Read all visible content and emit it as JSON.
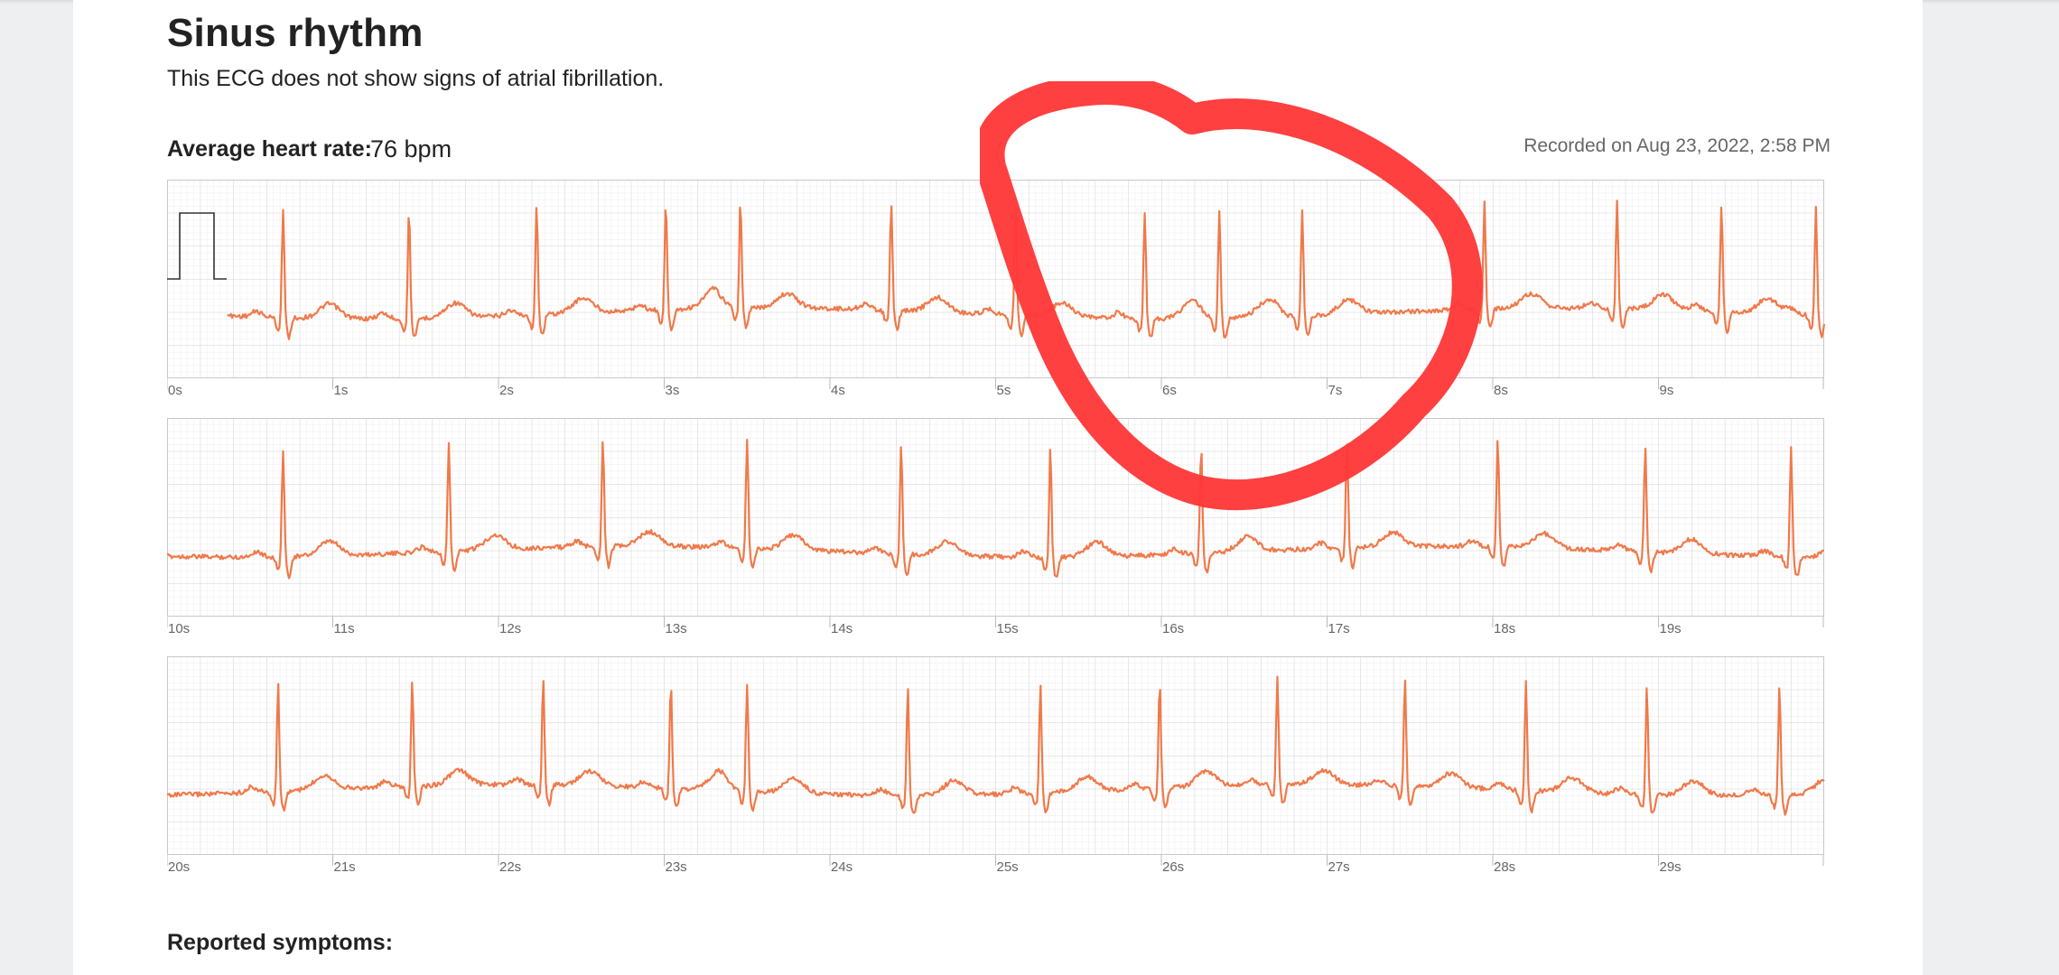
{
  "report": {
    "title": "Sinus rhythm",
    "subtitle": "This ECG does not show signs of atrial fibrillation.",
    "average_heart_rate_label": "Average heart rate:",
    "average_heart_rate_value": "76 bpm",
    "recorded": "Recorded on Aug 23, 2022, 2:58 PM",
    "reported_symptoms_label": "Reported symptoms:"
  },
  "colors": {
    "trace": "#f0794a",
    "grid_minor": "#e8e8e8",
    "grid_major": "#cccccc",
    "annotation": "#ff3838"
  },
  "chart_data": [
    {
      "type": "line",
      "x_ticks": [
        "0s",
        "1s",
        "2s",
        "3s",
        "4s",
        "5s",
        "6s",
        "7s",
        "8s",
        "9s"
      ],
      "xlim": [
        0,
        10
      ],
      "calibration_pulse": true,
      "r_peaks": [
        0.7,
        1.46,
        2.23,
        3.01,
        3.46,
        4.37,
        5.12,
        5.9,
        6.35,
        6.85,
        7.95,
        8.75,
        9.38,
        9.95
      ],
      "grid": true
    },
    {
      "type": "line",
      "x_ticks": [
        "10s",
        "11s",
        "12s",
        "13s",
        "14s",
        "15s",
        "16s",
        "17s",
        "18s",
        "19s"
      ],
      "xlim": [
        10,
        20
      ],
      "r_peaks": [
        10.7,
        11.7,
        12.63,
        13.5,
        14.43,
        15.33,
        16.24,
        17.12,
        18.03,
        18.92,
        19.8
      ],
      "grid": true
    },
    {
      "type": "line",
      "x_ticks": [
        "20s",
        "21s",
        "22s",
        "23s",
        "24s",
        "25s",
        "26s",
        "27s",
        "28s",
        "29s"
      ],
      "xlim": [
        20,
        30
      ],
      "r_peaks": [
        20.67,
        21.48,
        22.27,
        23.04,
        23.5,
        24.47,
        25.27,
        25.99,
        26.7,
        27.47,
        28.2,
        28.93,
        29.73
      ],
      "grid": true
    }
  ]
}
